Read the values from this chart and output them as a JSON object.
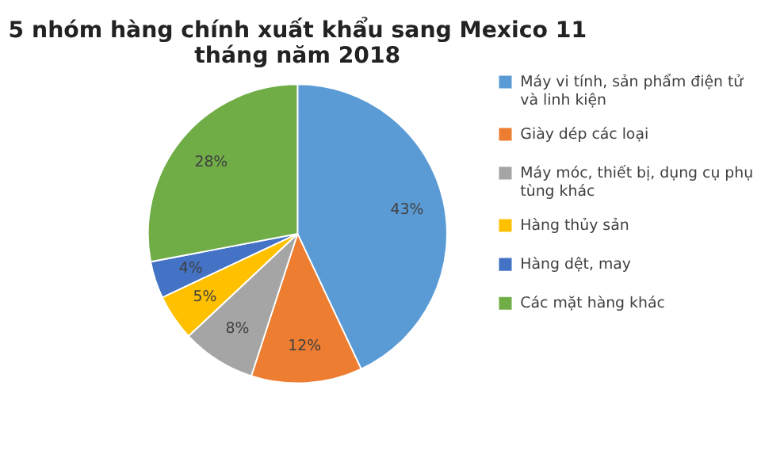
{
  "chart_data": {
    "type": "pie",
    "title": "5 nhóm hàng chính xuất khẩu sang Mexico 11 tháng năm 2018",
    "categories": [
      "Máy vi tính, sản phẩm điện tử và linh kiện",
      "Giày dép các loại",
      "Máy móc, thiết bị, dụng cụ phụ tùng khác",
      "Hàng thủy sản",
      "Hàng dệt, may",
      "Các mặt hàng khác"
    ],
    "values": [
      43,
      12,
      8,
      5,
      4,
      28
    ],
    "value_labels": [
      "43%",
      "12%",
      "8%",
      "5%",
      "4%",
      "28%"
    ],
    "colors": [
      "#5b9bd5",
      "#ed7d31",
      "#a5a5a5",
      "#ffc000",
      "#4472c4",
      "#70ad47"
    ],
    "legend": "right"
  }
}
